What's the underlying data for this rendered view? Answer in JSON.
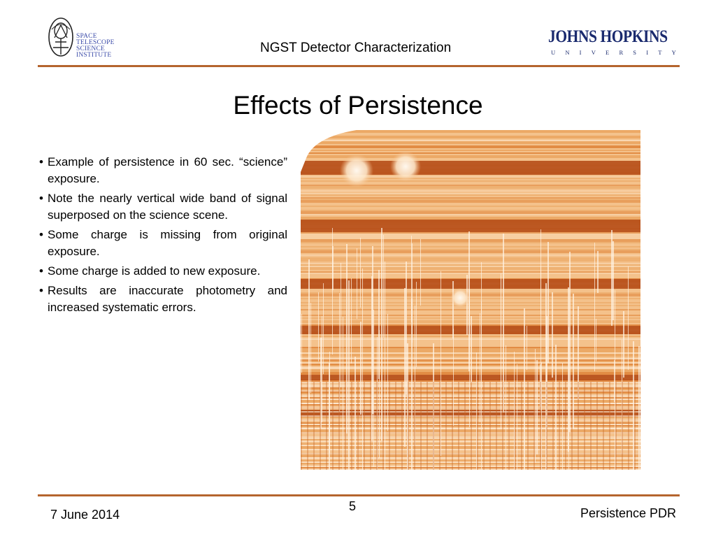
{
  "header": {
    "title": "NGST Detector Characterization",
    "stsci_logo": {
      "lines": [
        "SPACE",
        "TELESCOPE",
        "SCIENCE",
        "INSTITUTE"
      ]
    },
    "jhu_logo": {
      "name": "JOHNS HOPKINS",
      "subtitle": "UNIVERSITY"
    }
  },
  "slide": {
    "title": "Effects of Persistence",
    "bullets": [
      "Example of persistence in 60 sec. “science” exposure.",
      "Note the nearly vertical wide band of signal superposed on the science scene.",
      "Some charge is missing from original exposure.",
      "Some charge is added to new exposure.",
      "Results are inaccurate photometry and increased systematic errors."
    ],
    "bullet_char": "•"
  },
  "footer": {
    "date": "7 June 2014",
    "page_number": "5",
    "right_text": "Persistence PDR"
  },
  "colors": {
    "rule": "#b5652e",
    "logo_blue": "#1a2a6e",
    "image_dark_band": "#b8521c",
    "image_light": "#f4c08a"
  }
}
